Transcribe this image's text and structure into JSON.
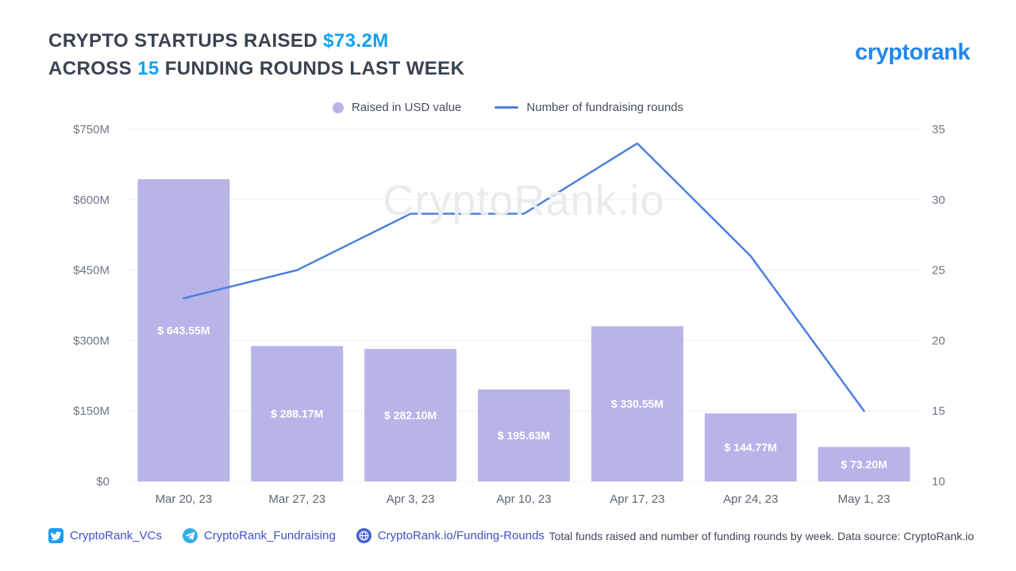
{
  "header": {
    "title_line1_prefix": "CRYPTO STARTUPS RAISED ",
    "title_line1_highlight": "$73.2M",
    "title_line2_prefix": "ACROSS ",
    "title_line2_highlight": "15",
    "title_line2_suffix": " FUNDING ROUNDS LAST WEEK",
    "logo": "cryptorank"
  },
  "legend": [
    {
      "label": "Raised in USD value",
      "swatch": "dot",
      "color": "#b8b4e9"
    },
    {
      "label": "Number of fundraising rounds",
      "swatch": "line",
      "color": "#4d80dd"
    }
  ],
  "watermark": "CryptoRank.io",
  "chart_data": {
    "type": "bar+line",
    "title": "Crypto startups raised $73.2M across 15 funding rounds last week",
    "categories": [
      "Mar 20, 23",
      "Mar 27, 23",
      "Apr 3, 23",
      "Apr 10, 23",
      "Apr 17, 23",
      "Apr 24, 23",
      "May 1, 23"
    ],
    "series": [
      {
        "name": "Raised in USD value",
        "type": "bar",
        "axis": "left",
        "color": "#b8b4e9",
        "values": [
          643.55,
          288.17,
          282.1,
          195.63,
          330.55,
          144.77,
          73.2
        ],
        "labels": [
          "$ 643.55M",
          "$ 288.17M",
          "$ 282.10M",
          "$ 195.63M",
          "$ 330.55M",
          "$ 144.77M",
          "$ 73.20M"
        ]
      },
      {
        "name": "Number of fundraising rounds",
        "type": "line",
        "axis": "right",
        "color": "#4d80dd",
        "values": [
          23,
          25,
          29,
          29,
          34,
          26,
          15
        ]
      }
    ],
    "left_axis": {
      "ticks": [
        "$0",
        "$150M",
        "$300M",
        "$450M",
        "$600M",
        "$750M"
      ],
      "min": 0,
      "max": 750
    },
    "right_axis": {
      "ticks": [
        10,
        15,
        20,
        25,
        30,
        35
      ],
      "min": 10,
      "max": 35
    },
    "grid": true,
    "legend_position": "top"
  },
  "footer": {
    "links": [
      {
        "icon": "twitter-icon",
        "label": "CryptoRank_VCs"
      },
      {
        "icon": "telegram-icon",
        "label": "CryptoRank_Fundraising"
      },
      {
        "icon": "globe-icon",
        "label": "CryptoRank.io/Funding-Rounds"
      }
    ],
    "caption": "Total funds raised and number of funding rounds by week. Data source: CryptoRank.io"
  },
  "colors": {
    "title_dark": "#394350",
    "accent_blue": "#14a0ee",
    "logo_blue": "#2287ee",
    "bar": "#b8b4e9",
    "line": "#4d80dd",
    "link_blue": "#3d52c6",
    "axis_text": "#6f7886"
  }
}
